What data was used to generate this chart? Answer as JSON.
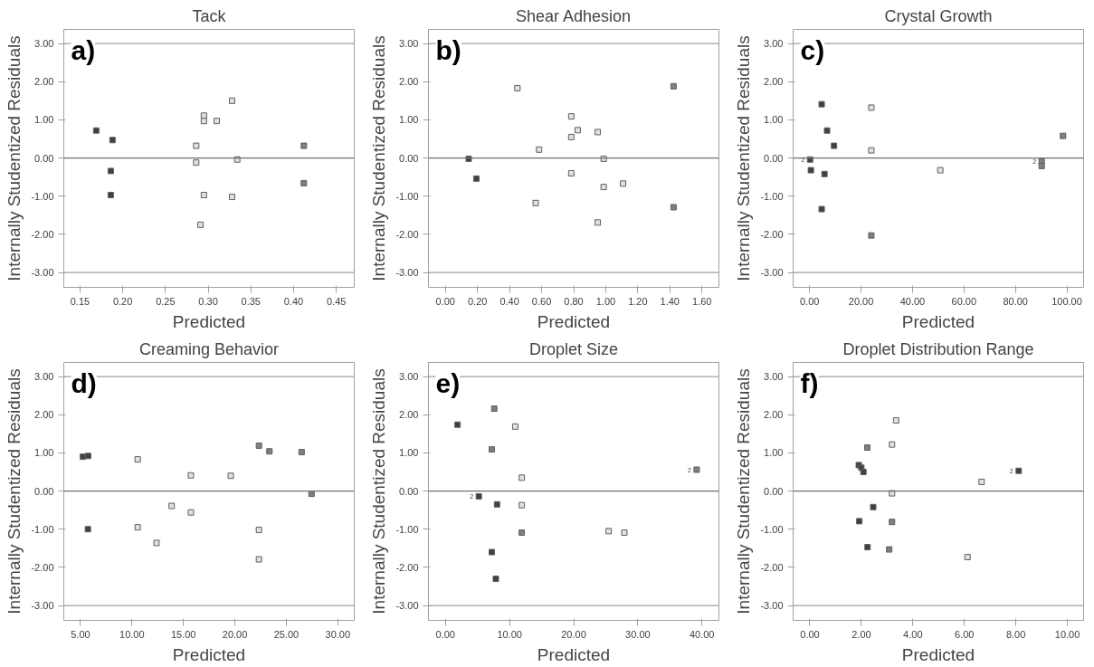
{
  "chart_data": [
    {
      "type": "scatter",
      "title": "Tack",
      "xlabel": "Predicted",
      "ylabel": "Internally Studentized Residuals",
      "marker": "square",
      "grid": false,
      "annotations": [
        "a)"
      ],
      "xlim": [
        0.131,
        0.471
      ],
      "ylim": [
        -3.39,
        3.37
      ],
      "xticks": [
        {
          "value": 0.15,
          "label": "0.15"
        },
        {
          "value": 0.2,
          "label": "0.20"
        },
        {
          "value": 0.25,
          "label": "0.25"
        },
        {
          "value": 0.3,
          "label": "0.30"
        },
        {
          "value": 0.35,
          "label": "0.35"
        },
        {
          "value": 0.4,
          "label": "0.40"
        },
        {
          "value": 0.45,
          "label": "0.45"
        }
      ],
      "yticks": [
        {
          "value": -3,
          "label": "-3.00"
        },
        {
          "value": -2,
          "label": "-2.00"
        },
        {
          "value": -1,
          "label": "-1.00"
        },
        {
          "value": 0,
          "label": "0.00"
        },
        {
          "value": 1,
          "label": "1.00"
        },
        {
          "value": 2,
          "label": "2.00"
        },
        {
          "value": 3,
          "label": "3.00"
        }
      ],
      "ref_lines": [
        {
          "axis": "y",
          "value": 3,
          "color": "#a0a0a0"
        },
        {
          "axis": "y",
          "value": 0,
          "color": "#707070"
        },
        {
          "axis": "y",
          "value": -3,
          "color": "#a0a0a0"
        }
      ],
      "series": [
        {
          "color": "#404040",
          "x": [
            0.169,
            0.188,
            0.186,
            0.186
          ],
          "values": [
            0.72,
            0.47,
            -0.34,
            -0.97
          ]
        },
        {
          "color": "#7f7f7f",
          "x": [
            0.412,
            0.412
          ],
          "values": [
            0.32,
            -0.66
          ]
        },
        {
          "color": "#e0e0e0",
          "x": [
            0.328,
            0.295,
            0.295,
            0.31,
            0.286,
            0.286,
            0.334,
            0.295,
            0.328,
            0.291
          ],
          "values": [
            1.5,
            1.11,
            0.97,
            0.97,
            0.32,
            -0.12,
            -0.04,
            -0.97,
            -1.02,
            -1.75
          ]
        }
      ]
    },
    {
      "type": "scatter",
      "title": "Shear Adhesion",
      "xlabel": "Predicted",
      "ylabel": "Internally Studentized Residuals",
      "marker": "square",
      "grid": false,
      "annotations": [
        "b)"
      ],
      "xlim": [
        -0.106,
        1.706
      ],
      "ylim": [
        -3.39,
        3.37
      ],
      "xticks": [
        {
          "value": 0,
          "label": "0.00"
        },
        {
          "value": 0.2,
          "label": "0.20"
        },
        {
          "value": 0.4,
          "label": "0.40"
        },
        {
          "value": 0.6,
          "label": "0.60"
        },
        {
          "value": 0.8,
          "label": "0.80"
        },
        {
          "value": 1.0,
          "label": "1.00"
        },
        {
          "value": 1.2,
          "label": "1.20"
        },
        {
          "value": 1.4,
          "label": "1.40"
        },
        {
          "value": 1.6,
          "label": "1.60"
        }
      ],
      "yticks": [
        {
          "value": -3,
          "label": "-3.00"
        },
        {
          "value": -2,
          "label": "-2.00"
        },
        {
          "value": -1,
          "label": "-1.00"
        },
        {
          "value": 0,
          "label": "0.00"
        },
        {
          "value": 1,
          "label": "1.00"
        },
        {
          "value": 2,
          "label": "2.00"
        },
        {
          "value": 3,
          "label": "3.00"
        }
      ],
      "ref_lines": [
        {
          "axis": "y",
          "value": 3,
          "color": "#a0a0a0"
        },
        {
          "axis": "y",
          "value": 0,
          "color": "#707070"
        },
        {
          "axis": "y",
          "value": -3,
          "color": "#a0a0a0"
        }
      ],
      "series": [
        {
          "color": "#404040",
          "x": [
            0.145,
            0.193
          ],
          "values": [
            -0.02,
            -0.54
          ]
        },
        {
          "color": "#7f7f7f",
          "x": [
            1.423,
            1.423
          ],
          "values": [
            1.88,
            -1.29
          ]
        },
        {
          "color": "#e0e0e0",
          "x": [
            0.449,
            0.785,
            0.825,
            0.785,
            0.95,
            0.584,
            0.987,
            0.785,
            0.987,
            1.108,
            0.563,
            0.95
          ],
          "values": [
            1.83,
            1.09,
            0.73,
            0.55,
            0.68,
            0.22,
            -0.02,
            -0.4,
            -0.76,
            -0.67,
            -1.18,
            -1.69
          ]
        }
      ]
    },
    {
      "type": "scatter",
      "title": "Crystal Growth",
      "xlabel": "Predicted",
      "ylabel": "Internally Studentized Residuals",
      "marker": "square",
      "grid": false,
      "annotations": [
        "c)",
        {
          "text": "2",
          "x": 0.2,
          "y": -0.04
        },
        {
          "text": "2",
          "x": 90.2,
          "y": -0.09
        }
      ],
      "xlim": [
        -6.4,
        106.5
      ],
      "ylim": [
        -3.39,
        3.37
      ],
      "xticks": [
        {
          "value": 0,
          "label": "0.00"
        },
        {
          "value": 20,
          "label": "20.00"
        },
        {
          "value": 40,
          "label": "40.00"
        },
        {
          "value": 60,
          "label": "60.00"
        },
        {
          "value": 80,
          "label": "80.00"
        },
        {
          "value": 100,
          "label": "100.00"
        }
      ],
      "yticks": [
        {
          "value": -3,
          "label": "-3.00"
        },
        {
          "value": -2,
          "label": "-2.00"
        },
        {
          "value": -1,
          "label": "-1.00"
        },
        {
          "value": 0,
          "label": "0.00"
        },
        {
          "value": 1,
          "label": "1.00"
        },
        {
          "value": 2,
          "label": "2.00"
        },
        {
          "value": 3,
          "label": "3.00"
        }
      ],
      "ref_lines": [
        {
          "axis": "y",
          "value": 3,
          "color": "#a0a0a0"
        },
        {
          "axis": "y",
          "value": 0,
          "color": "#707070"
        },
        {
          "axis": "y",
          "value": -3,
          "color": "#a0a0a0"
        }
      ],
      "series": [
        {
          "color": "#404040",
          "x": [
            4.7,
            6.8,
            9.5,
            0.2,
            0.5,
            5.8,
            4.7
          ],
          "values": [
            1.41,
            0.72,
            0.32,
            -0.04,
            -0.32,
            -0.42,
            -1.34
          ]
        },
        {
          "color": "#7f7f7f",
          "x": [
            24.0,
            98.5,
            90.2,
            90.2
          ],
          "values": [
            -2.03,
            0.58,
            -0.09,
            -0.21
          ]
        },
        {
          "color": "#e0e0e0",
          "x": [
            24.0,
            24.0,
            50.8
          ],
          "values": [
            1.32,
            0.2,
            -0.32
          ]
        }
      ]
    },
    {
      "type": "scatter",
      "title": "Creaming Behavior",
      "xlabel": "Predicted",
      "ylabel": "Internally Studentized Residuals",
      "marker": "square",
      "grid": false,
      "annotations": [
        "d)"
      ],
      "xlim": [
        3.38,
        31.6
      ],
      "ylim": [
        -3.39,
        3.37
      ],
      "xticks": [
        {
          "value": 5,
          "label": "5.00"
        },
        {
          "value": 10,
          "label": "10.00"
        },
        {
          "value": 15,
          "label": "15.00"
        },
        {
          "value": 20,
          "label": "20.00"
        },
        {
          "value": 25,
          "label": "25.00"
        },
        {
          "value": 30,
          "label": "30.00"
        }
      ],
      "yticks": [
        {
          "value": -3,
          "label": "-3.00"
        },
        {
          "value": -2,
          "label": "-2.00"
        },
        {
          "value": -1,
          "label": "-1.00"
        },
        {
          "value": 0,
          "label": "0.00"
        },
        {
          "value": 1,
          "label": "1.00"
        },
        {
          "value": 2,
          "label": "2.00"
        },
        {
          "value": 3,
          "label": "3.00"
        }
      ],
      "ref_lines": [
        {
          "axis": "y",
          "value": 3,
          "color": "#a0a0a0"
        },
        {
          "axis": "y",
          "value": 0,
          "color": "#707070"
        },
        {
          "axis": "y",
          "value": -3,
          "color": "#a0a0a0"
        }
      ],
      "series": [
        {
          "color": "#404040",
          "x": [
            5.24,
            5.75,
            5.72
          ],
          "values": [
            0.9,
            0.92,
            -1.0
          ]
        },
        {
          "color": "#7f7f7f",
          "x": [
            22.34,
            23.36,
            26.49,
            27.45
          ],
          "values": [
            1.19,
            1.04,
            1.02,
            -0.07
          ]
        },
        {
          "color": "#e0e0e0",
          "x": [
            10.56,
            15.73,
            19.6,
            13.86,
            15.73,
            10.56,
            12.39,
            22.34,
            22.34
          ],
          "values": [
            0.83,
            0.41,
            0.4,
            -0.39,
            -0.56,
            -0.95,
            -1.36,
            -1.02,
            -1.79
          ]
        }
      ]
    },
    {
      "type": "scatter",
      "title": "Droplet Size",
      "xlabel": "Predicted",
      "ylabel": "Internally Studentized Residuals",
      "marker": "square",
      "grid": false,
      "annotations": [
        "e)",
        {
          "text": "2",
          "x": 5.2,
          "y": -0.14
        },
        {
          "text": "2",
          "x": 39.18,
          "y": 0.56
        }
      ],
      "xlim": [
        -2.65,
        42.65
      ],
      "ylim": [
        -3.39,
        3.37
      ],
      "xticks": [
        {
          "value": 0,
          "label": "0.00"
        },
        {
          "value": 10,
          "label": "10.00"
        },
        {
          "value": 20,
          "label": "20.00"
        },
        {
          "value": 30,
          "label": "30.00"
        },
        {
          "value": 40,
          "label": "40.00"
        }
      ],
      "yticks": [
        {
          "value": -3,
          "label": "-3.00"
        },
        {
          "value": -2,
          "label": "-2.00"
        },
        {
          "value": -1,
          "label": "-1.00"
        },
        {
          "value": 0,
          "label": "0.00"
        },
        {
          "value": 1,
          "label": "1.00"
        },
        {
          "value": 2,
          "label": "2.00"
        },
        {
          "value": 3,
          "label": "3.00"
        }
      ],
      "ref_lines": [
        {
          "axis": "y",
          "value": 3,
          "color": "#a0a0a0"
        },
        {
          "axis": "y",
          "value": 0,
          "color": "#707070"
        },
        {
          "axis": "y",
          "value": -3,
          "color": "#a0a0a0"
        }
      ],
      "series": [
        {
          "color": "#404040",
          "x": [
            1.88,
            5.2,
            8.05,
            7.23,
            7.86
          ],
          "values": [
            1.74,
            -0.14,
            -0.35,
            -1.6,
            -2.3
          ]
        },
        {
          "color": "#7f7f7f",
          "x": [
            7.61,
            7.23,
            11.9,
            39.18
          ],
          "values": [
            2.16,
            1.09,
            -1.09,
            0.56
          ]
        },
        {
          "color": "#e0e0e0",
          "x": [
            10.89,
            11.9,
            11.9,
            25.45,
            27.9
          ],
          "values": [
            1.69,
            0.35,
            -0.37,
            -1.05,
            -1.09
          ]
        }
      ]
    },
    {
      "type": "scatter",
      "title": "Droplet Distribution Range",
      "xlabel": "Predicted",
      "ylabel": "Internally Studentized Residuals",
      "marker": "square",
      "grid": false,
      "annotations": [
        "f)",
        {
          "text": "2",
          "x": 8.11,
          "y": 0.53
        }
      ],
      "xlim": [
        -0.65,
        10.63
      ],
      "ylim": [
        -3.39,
        3.37
      ],
      "xticks": [
        {
          "value": 0,
          "label": "0.00"
        },
        {
          "value": 2,
          "label": "2.00"
        },
        {
          "value": 4,
          "label": "4.00"
        },
        {
          "value": 6,
          "label": "6.00"
        },
        {
          "value": 8,
          "label": "8.00"
        },
        {
          "value": 10,
          "label": "10.00"
        }
      ],
      "yticks": [
        {
          "value": -3,
          "label": "-3.00"
        },
        {
          "value": -2,
          "label": "-2.00"
        },
        {
          "value": -1,
          "label": "-1.00"
        },
        {
          "value": 0,
          "label": "0.00"
        },
        {
          "value": 1,
          "label": "1.00"
        },
        {
          "value": 2,
          "label": "2.00"
        },
        {
          "value": 3,
          "label": "3.00"
        }
      ],
      "ref_lines": [
        {
          "axis": "y",
          "value": 3,
          "color": "#a0a0a0"
        },
        {
          "axis": "y",
          "value": 0,
          "color": "#707070"
        },
        {
          "axis": "y",
          "value": -3,
          "color": "#a0a0a0"
        }
      ],
      "series": [
        {
          "color": "#404040",
          "x": [
            1.92,
            2.24,
            2.46,
            1.9,
            2.0,
            2.08,
            8.11
          ],
          "values": [
            -0.79,
            -1.47,
            -0.42,
            0.68,
            0.61,
            0.5,
            0.53
          ]
        },
        {
          "color": "#7f7f7f",
          "x": [
            2.23,
            3.19,
            3.08
          ],
          "values": [
            1.14,
            -0.81,
            -1.53
          ]
        },
        {
          "color": "#e0e0e0",
          "x": [
            3.35,
            3.19,
            3.19,
            6.67,
            6.12
          ],
          "values": [
            1.85,
            1.22,
            -0.06,
            0.24,
            -1.73
          ]
        }
      ]
    }
  ]
}
